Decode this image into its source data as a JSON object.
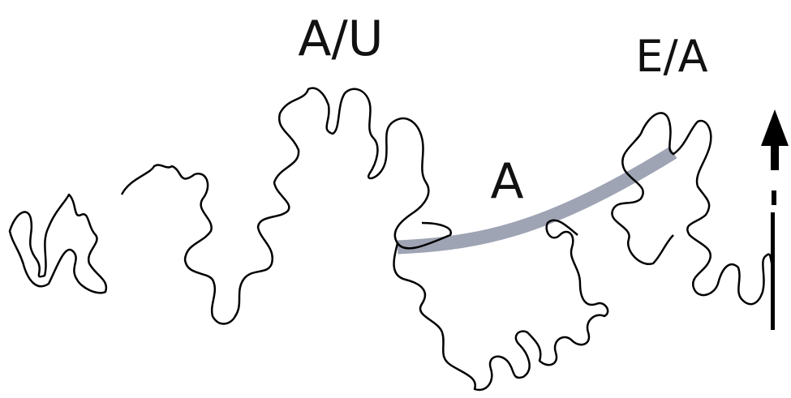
{
  "labels": {
    "left": "A/U",
    "middle": "A",
    "right": "E/A"
  }
}
